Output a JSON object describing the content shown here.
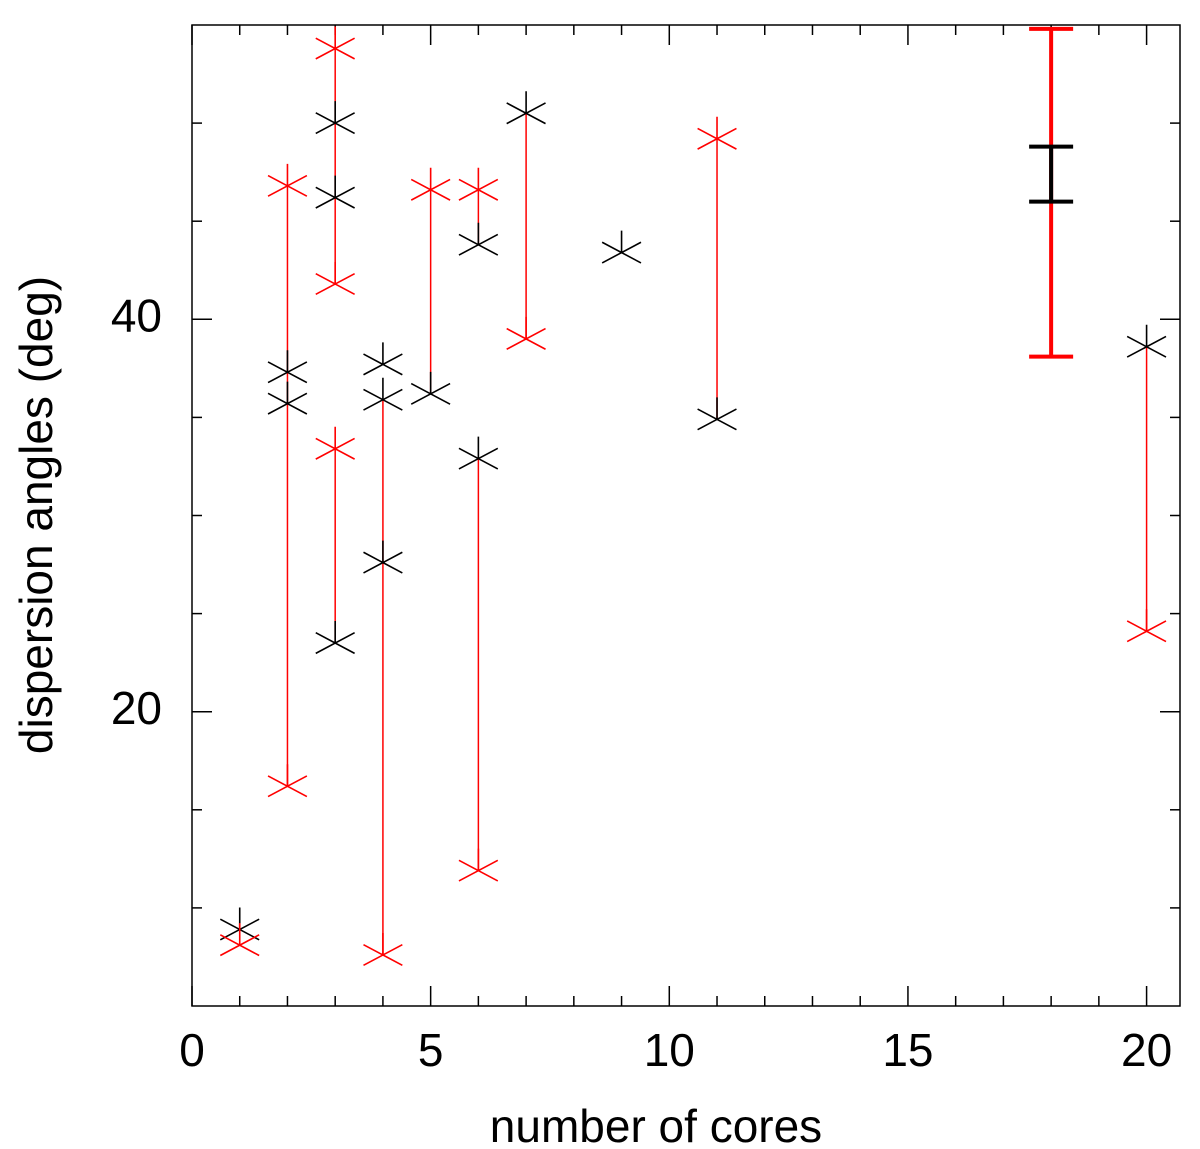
{
  "chart_data": {
    "type": "scatter",
    "xlabel": "number of cores",
    "ylabel": "dispersion angles (deg)",
    "xlim": [
      0,
      20.7
    ],
    "ylim": [
      5,
      55
    ],
    "xticks": [
      0,
      5,
      10,
      15,
      20
    ],
    "xminorticks": [
      1,
      2,
      3,
      4,
      6,
      7,
      8,
      9,
      11,
      12,
      13,
      14,
      16,
      17,
      18,
      19
    ],
    "yticks": [
      20,
      40
    ],
    "yminorticks": [
      10,
      15,
      25,
      30,
      35,
      45,
      50
    ],
    "series": [
      {
        "color": "#000000",
        "x": [
          1,
          2,
          2,
          3,
          3,
          3,
          4,
          4,
          4,
          5,
          6,
          6,
          7,
          9,
          11,
          20
        ],
        "values": [
          8.9,
          37.3,
          35.7,
          50.0,
          46.2,
          23.5,
          37.7,
          35.9,
          27.6,
          36.2,
          43.8,
          32.9,
          50.5,
          43.4,
          34.9,
          38.6
        ]
      },
      {
        "color": "#ff0000",
        "x": [
          1,
          2,
          2,
          3,
          3,
          3,
          4,
          5,
          6,
          6,
          7,
          11,
          20
        ],
        "values": [
          8.1,
          46.8,
          16.2,
          53.8,
          41.8,
          33.4,
          7.6,
          46.6,
          46.6,
          11.9,
          39.0,
          49.2,
          24.1
        ]
      }
    ],
    "segments": {
      "color": "#ff0000",
      "x": [
        2,
        3,
        3,
        4,
        5,
        6,
        6,
        7,
        11,
        20
      ],
      "from": [
        46.8,
        53.8,
        33.4,
        35.9,
        46.6,
        46.6,
        32.9,
        50.5,
        49.2,
        38.6
      ],
      "to": [
        16.2,
        41.8,
        23.5,
        7.6,
        36.2,
        43.8,
        11.9,
        39.0,
        34.9,
        24.1
      ]
    },
    "error_bars": [
      {
        "color": "#ff0000",
        "x": 18,
        "y": 46.45,
        "err": 8.35
      },
      {
        "color": "#000000",
        "x": 18,
        "y": 47.4,
        "err": 1.4
      }
    ]
  }
}
